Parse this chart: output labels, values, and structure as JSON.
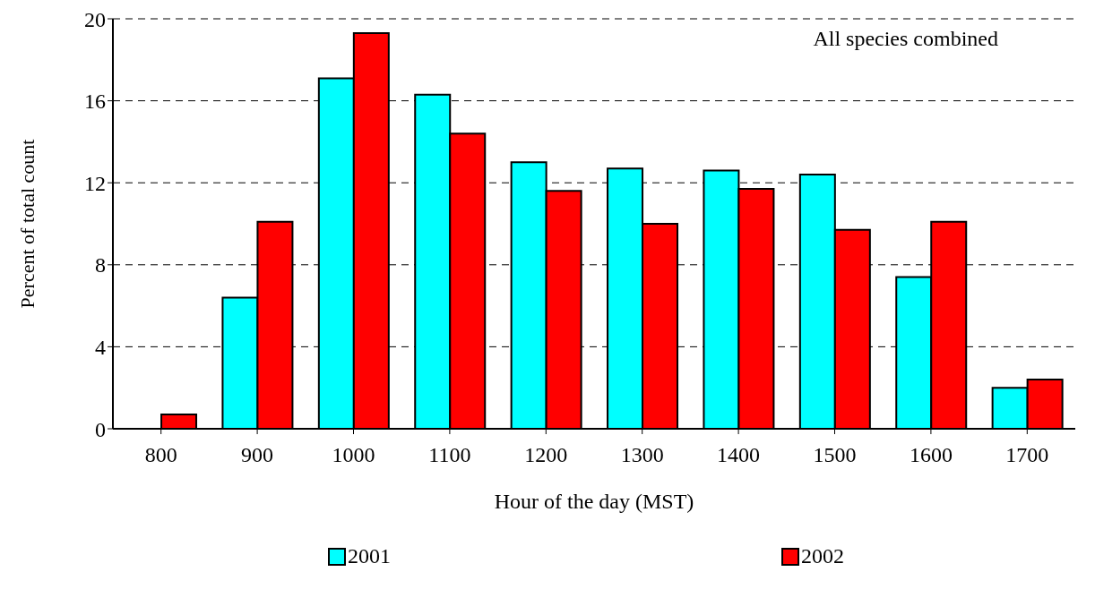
{
  "chart_data": {
    "type": "bar",
    "xlabel": "Hour of the day (MST)",
    "ylabel": "Percent of total count",
    "annotations": [
      "All species combined"
    ],
    "categories": [
      "800",
      "900",
      "1000",
      "1100",
      "1200",
      "1300",
      "1400",
      "1500",
      "1600",
      "1700"
    ],
    "series": [
      {
        "name": "2001",
        "color": "#00ffff",
        "values": [
          0,
          6.4,
          17.1,
          16.3,
          13.0,
          12.7,
          12.6,
          12.4,
          7.4,
          2.0
        ]
      },
      {
        "name": "2002",
        "color": "#ff0000",
        "values": [
          0.7,
          10.1,
          19.3,
          14.4,
          11.6,
          10.0,
          11.7,
          9.7,
          10.1,
          2.4
        ]
      }
    ],
    "ylim": [
      0,
      20
    ],
    "yticks": [
      0,
      4,
      8,
      12,
      16,
      20
    ],
    "grid": "y",
    "legend": "bottom"
  }
}
